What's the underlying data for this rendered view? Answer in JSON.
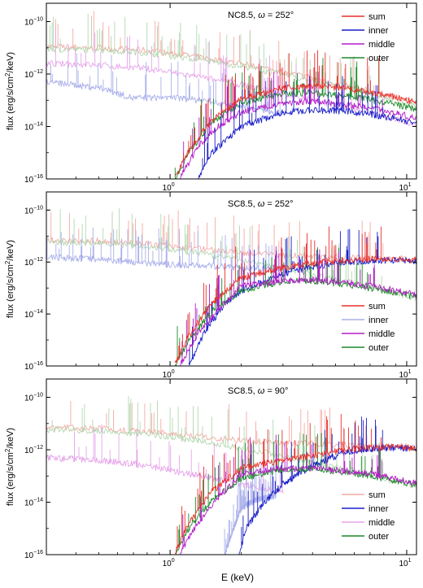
{
  "figure": {
    "x_label": "E (keV)",
    "y_label_parts": [
      "flux (erg/s/cm",
      "2",
      "/keV)"
    ]
  },
  "colors": {
    "sum": "#e8302a",
    "inner": "#1a1fc8",
    "middle": "#b41ec8",
    "outer": "#1d8a2a",
    "sum_soft": "#f4aaa4",
    "inner_soft": "#aab0ea",
    "middle_soft": "#e6a4ea",
    "outer_soft": "#b2d8b0"
  },
  "chart_data": [
    {
      "type": "line",
      "title_prefix": "NC8.5, ",
      "title_omega": "ω",
      "title_suffix": " = 252°",
      "xscale": "log",
      "yscale": "log",
      "xlim": [
        0.3,
        11
      ],
      "ylim": [
        1e-16,
        5e-10
      ],
      "x_ticks": [
        {
          "value": 1,
          "label": "10",
          "exp": "0"
        },
        {
          "value": 10,
          "label": "10",
          "exp": "1"
        }
      ],
      "y_ticks": [
        {
          "value": 1e-10,
          "label": "10",
          "exp": "−10"
        },
        {
          "value": 1e-12,
          "label": "10",
          "exp": "−12"
        },
        {
          "value": 1e-14,
          "label": "10",
          "exp": "−14"
        },
        {
          "value": 1e-16,
          "label": "10",
          "exp": "−16"
        }
      ],
      "legend_position": "top-right",
      "legend": [
        {
          "key": "sum",
          "label": "sum",
          "color": "#e8302a"
        },
        {
          "key": "inner",
          "label": "inner",
          "color": "#1a1fc8"
        },
        {
          "key": "middle",
          "label": "middle",
          "color": "#b41ec8"
        },
        {
          "key": "outer",
          "label": "outer",
          "color": "#1d8a2a"
        }
      ],
      "series": [
        {
          "key": "soft-sum",
          "color": "#f4aaa4",
          "x": [
            0.3,
            0.5,
            0.8,
            1.2,
            2.0,
            4.0,
            7.0,
            11
          ],
          "y": [
            1.1e-11,
            1e-11,
            8e-12,
            5e-12,
            2.5e-12,
            7e-13,
            2.3e-13,
            8e-14
          ]
        },
        {
          "key": "soft-outer",
          "color": "#b2d8b0",
          "x": [
            0.3,
            0.5,
            0.8,
            1.2,
            2.0,
            4.0,
            7.0,
            11
          ],
          "y": [
            9e-12,
            8.5e-12,
            6.5e-12,
            4e-12,
            2e-12,
            5.5e-13,
            1.8e-13,
            6e-14
          ]
        },
        {
          "key": "soft-middle",
          "color": "#e6a4ea",
          "x": [
            0.3,
            0.5,
            0.8,
            1.2,
            2.0,
            4.0,
            7.0,
            11
          ],
          "y": [
            2.5e-12,
            2.2e-12,
            1.6e-12,
            9e-13,
            4e-13,
            1e-13,
            3.5e-14,
            1.2e-14
          ]
        },
        {
          "key": "soft-inner",
          "color": "#aab0ea",
          "x": [
            0.3,
            0.5,
            0.7,
            1.0,
            1.5,
            2.0,
            3.0
          ],
          "y": [
            5e-13,
            3e-13,
            1.2e-13,
            1.3e-13,
            9e-14,
            6e-14,
            3e-14
          ]
        },
        {
          "key": "hard-outer",
          "color": "#1d8a2a",
          "x": [
            1.05,
            1.2,
            1.5,
            2.0,
            3.0,
            4.0,
            5.5,
            7.0,
            9.0,
            11
          ],
          "y": [
            1e-16,
            1e-15,
            1.5e-14,
            8e-14,
            1.8e-13,
            1.9e-13,
            1.5e-13,
            1.05e-13,
            7e-14,
            4.5e-14
          ]
        },
        {
          "key": "hard-middle",
          "color": "#b41ec8",
          "x": [
            1.1,
            1.3,
            1.6,
            2.0,
            3.0,
            4.0,
            5.5,
            7.0,
            9.0,
            11
          ],
          "y": [
            1e-16,
            1.5e-15,
            1e-14,
            3.5e-14,
            8e-14,
            9e-14,
            7e-14,
            4.8e-14,
            3.2e-14,
            2e-14
          ]
        },
        {
          "key": "hard-inner",
          "color": "#1a1fc8",
          "x": [
            1.3,
            1.5,
            2.0,
            3.0,
            4.0,
            5.5,
            7.0,
            9.0,
            11
          ],
          "y": [
            1e-16,
            1e-15,
            1e-14,
            3.5e-14,
            4.2e-14,
            3.8e-14,
            2.9e-14,
            2e-14,
            1.3e-14
          ]
        },
        {
          "key": "hard-sum",
          "color": "#e8302a",
          "x": [
            1.05,
            1.2,
            1.5,
            2.0,
            3.0,
            4.0,
            5.5,
            7.0,
            9.0,
            11
          ],
          "y": [
            1.2e-16,
            1.2e-15,
            1.8e-14,
            1.1e-13,
            3e-13,
            3.4e-13,
            2.8e-13,
            1.9e-13,
            1.3e-13,
            8e-14
          ]
        }
      ]
    },
    {
      "type": "line",
      "title_prefix": "SC8.5, ",
      "title_omega": "ω",
      "title_suffix": " = 252°",
      "xscale": "log",
      "yscale": "log",
      "xlim": [
        0.3,
        11
      ],
      "ylim": [
        1e-16,
        5e-10
      ],
      "x_ticks": [
        {
          "value": 1,
          "label": "10",
          "exp": "0"
        },
        {
          "value": 10,
          "label": "10",
          "exp": "1"
        }
      ],
      "y_ticks": [
        {
          "value": 1e-10,
          "label": "10",
          "exp": "−10"
        },
        {
          "value": 1e-12,
          "label": "10",
          "exp": "−12"
        },
        {
          "value": 1e-14,
          "label": "10",
          "exp": "−14"
        },
        {
          "value": 1e-16,
          "label": "10",
          "exp": "−16"
        }
      ],
      "legend_position": "bottom-right",
      "legend": [
        {
          "key": "sum",
          "label": "sum",
          "color": "#e8302a"
        },
        {
          "key": "inner",
          "label": "inner",
          "color": "#aab0ea"
        },
        {
          "key": "middle",
          "label": "middle",
          "color": "#b41ec8"
        },
        {
          "key": "outer",
          "label": "outer",
          "color": "#1d8a2a"
        }
      ],
      "series": [
        {
          "key": "soft-sum",
          "color": "#f4aaa4",
          "x": [
            0.3,
            0.5,
            0.8,
            1.2,
            2.0,
            3.0,
            5.0,
            7.0,
            11
          ],
          "y": [
            7e-12,
            6.5e-12,
            5e-12,
            3.5e-12,
            2.3e-12,
            1.8e-12,
            1.6e-12,
            1.5e-12,
            1.3e-12
          ]
        },
        {
          "key": "soft-outer",
          "color": "#b2d8b0",
          "x": [
            0.3,
            0.5,
            0.8,
            1.2,
            2.0,
            4.0,
            7.0,
            11
          ],
          "y": [
            6e-12,
            5.5e-12,
            4e-12,
            2.5e-12,
            1.2e-12,
            3.5e-13,
            1.1e-13,
            4e-14
          ]
        },
        {
          "key": "soft-inner",
          "color": "#aab0ea",
          "x": [
            0.3,
            0.5,
            0.7,
            1.0,
            1.5,
            2.0,
            3.0
          ],
          "y": [
            1.5e-12,
            1.3e-12,
            1e-12,
            8e-13,
            7e-13,
            6e-13,
            5e-13
          ]
        },
        {
          "key": "hard-inner",
          "color": "#1a1fc8",
          "x": [
            1.2,
            1.4,
            1.7,
            2.0,
            3.0,
            4.0,
            5.5,
            7.0,
            9.0,
            11
          ],
          "y": [
            1e-16,
            2e-15,
            2.5e-14,
            8e-14,
            3.5e-13,
            6.5e-13,
            1e-12,
            1.1e-12,
            1.2e-12,
            1.1e-12
          ]
        },
        {
          "key": "hard-outer",
          "color": "#1d8a2a",
          "x": [
            1.05,
            1.2,
            1.5,
            2.0,
            3.0,
            4.0,
            5.5,
            7.0,
            9.0,
            11
          ],
          "y": [
            1e-16,
            1e-15,
            1.2e-14,
            8e-14,
            1.8e-13,
            1.9e-13,
            1.4e-13,
            1e-13,
            6.5e-14,
            4.5e-14
          ]
        },
        {
          "key": "hard-middle",
          "color": "#b41ec8",
          "x": [
            1.1,
            1.3,
            1.6,
            2.0,
            3.0,
            4.0,
            5.5,
            7.0,
            9.0,
            11
          ],
          "y": [
            1e-16,
            1.5e-15,
            1.5e-14,
            1.2e-13,
            1.9e-13,
            2e-13,
            1.6e-13,
            1.2e-13,
            8e-14,
            5.5e-14
          ]
        },
        {
          "key": "hard-sum",
          "color": "#e8302a",
          "x": [
            1.05,
            1.2,
            1.5,
            2.0,
            3.0,
            4.0,
            5.5,
            7.0,
            9.0,
            11
          ],
          "y": [
            1.2e-16,
            1.5e-15,
            2.5e-14,
            2.5e-13,
            6e-13,
            9e-13,
            1.2e-12,
            1.3e-12,
            1.3e-12,
            1.2e-12
          ]
        }
      ]
    },
    {
      "type": "line",
      "title_prefix": "SC8.5, ",
      "title_omega": "ω",
      "title_suffix": " = 90°",
      "xscale": "log",
      "yscale": "log",
      "xlim": [
        0.3,
        11
      ],
      "ylim": [
        1e-16,
        5e-10
      ],
      "x_ticks": [
        {
          "value": 1,
          "label": "10",
          "exp": "0"
        },
        {
          "value": 10,
          "label": "10",
          "exp": "1"
        }
      ],
      "y_ticks": [
        {
          "value": 1e-10,
          "label": "10",
          "exp": "−10"
        },
        {
          "value": 1e-12,
          "label": "10",
          "exp": "−12"
        },
        {
          "value": 1e-14,
          "label": "10",
          "exp": "−14"
        },
        {
          "value": 1e-16,
          "label": "10",
          "exp": "−16"
        }
      ],
      "legend_position": "bottom-right",
      "legend": [
        {
          "key": "sum",
          "label": "sum",
          "color": "#f4aaa4"
        },
        {
          "key": "inner",
          "label": "inner",
          "color": "#1a1fc8"
        },
        {
          "key": "middle",
          "label": "middle",
          "color": "#e6a4ea"
        },
        {
          "key": "outer",
          "label": "outer",
          "color": "#1d8a2a"
        }
      ],
      "series": [
        {
          "key": "soft-sum",
          "color": "#f4aaa4",
          "x": [
            0.3,
            0.5,
            0.8,
            1.2,
            2.0,
            3.0,
            5.0,
            7.0,
            11
          ],
          "y": [
            7e-12,
            6.5e-12,
            5e-12,
            3.5e-12,
            2.3e-12,
            1.8e-12,
            1.6e-12,
            1.5e-12,
            1.3e-12
          ]
        },
        {
          "key": "soft-outer",
          "color": "#b2d8b0",
          "x": [
            0.3,
            0.5,
            0.8,
            1.2,
            2.0,
            4.0,
            7.0,
            11
          ],
          "y": [
            6e-12,
            5.5e-12,
            4e-12,
            2.5e-12,
            1.2e-12,
            3.5e-13,
            1.1e-13,
            4e-14
          ]
        },
        {
          "key": "soft-middle",
          "color": "#e6a4ea",
          "x": [
            0.3,
            0.5,
            0.8,
            1.2,
            2.0,
            3.0
          ],
          "y": [
            5e-13,
            4e-13,
            2.5e-13,
            1.2e-13,
            5e-14,
            2.5e-14
          ]
        },
        {
          "key": "inner-faint",
          "color": "#aab0ea",
          "x": [
            1.7,
            1.85,
            2.0,
            2.3,
            2.8
          ],
          "y": [
            1e-16,
            1e-15,
            6e-15,
            1.2e-14,
            1.8e-14
          ]
        },
        {
          "key": "hard-inner",
          "color": "#1a1fc8",
          "x": [
            1.95,
            2.1,
            2.5,
            3.0,
            4.0,
            5.5,
            7.0,
            9.0,
            11
          ],
          "y": [
            1e-16,
            1e-15,
            1e-14,
            5e-14,
            2.5e-13,
            8e-13,
            1.1e-12,
            1.2e-12,
            1.1e-12
          ]
        },
        {
          "key": "hard-outer",
          "color": "#1d8a2a",
          "x": [
            1.05,
            1.2,
            1.5,
            2.0,
            3.0,
            4.0,
            5.5,
            7.0,
            9.0,
            11
          ],
          "y": [
            1e-16,
            1e-15,
            1.2e-14,
            8e-14,
            1.8e-13,
            1.9e-13,
            1.4e-13,
            1e-13,
            6.5e-14,
            4.5e-14
          ]
        },
        {
          "key": "hard-middle",
          "color": "#b41ec8",
          "x": [
            1.1,
            1.3,
            1.6,
            2.0,
            3.0,
            4.0,
            5.5,
            7.0,
            9.0,
            11
          ],
          "y": [
            1e-16,
            1.5e-15,
            1.5e-14,
            1.2e-13,
            1.9e-13,
            2e-13,
            1.6e-13,
            1.2e-13,
            8e-14,
            5.5e-14
          ]
        },
        {
          "key": "hard-sum",
          "color": "#e8302a",
          "x": [
            1.05,
            1.2,
            1.5,
            2.0,
            3.0,
            4.0,
            5.5,
            7.0,
            9.0,
            11
          ],
          "y": [
            1.2e-16,
            1.5e-15,
            2.5e-14,
            2e-13,
            4e-13,
            6e-13,
            1e-12,
            1.2e-12,
            1.25e-12,
            1.15e-12
          ]
        }
      ]
    }
  ]
}
